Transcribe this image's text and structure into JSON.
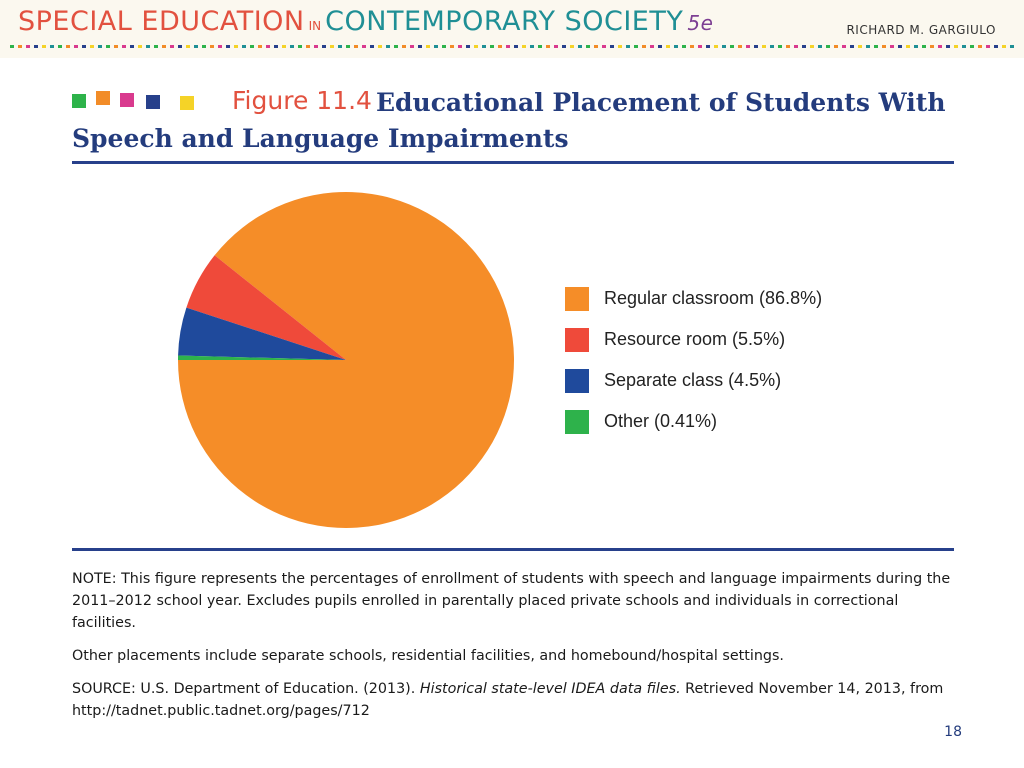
{
  "banner": {
    "title_part1": "SPECIAL EDUCATION",
    "title_in": "IN",
    "title_part2": "CONTEMPORARY SOCIETY",
    "edition": "5e",
    "author": "RICHARD M. GARGIULO"
  },
  "figure": {
    "label": "Figure 11.4",
    "title_line1": "Educational Placement of Students With",
    "title_line2": "Speech and Language Impairments"
  },
  "colors": {
    "banner_red": "#e2513f",
    "banner_teal": "#1f8f95",
    "title_navy": "#243c7d",
    "rule": "#27408b",
    "squares": [
      "#2db34a",
      "#f28c28",
      "#d93a8e",
      "#27408b",
      "#f5d327"
    ]
  },
  "chart_data": {
    "type": "pie",
    "title": "Educational Placement of Students With Speech and Language Impairments",
    "start_angle_deg": 180,
    "direction": "counterclockwise",
    "slices": [
      {
        "name": "Regular classroom",
        "value": 86.8,
        "color": "#f58d28",
        "legend": "Regular classroom (86.8%)"
      },
      {
        "name": "Resource room",
        "value": 5.5,
        "color": "#ef4a3a",
        "legend": "Resource room (5.5%)"
      },
      {
        "name": "Separate class",
        "value": 4.5,
        "color": "#1f4a9c",
        "legend": "Separate class (4.5%)"
      },
      {
        "name": "Other",
        "value": 0.41,
        "color": "#2eb24b",
        "legend": "Other (0.41%)"
      }
    ],
    "legend_position": "right"
  },
  "notes": {
    "note": "NOTE: This figure represents the percentages of enrollment of students with speech and language impairments during the 2011–2012 school year. Excludes pupils enrolled in parentally placed private schools and individuals in correctional facilities.",
    "other": "Other placements include separate schools, residential facilities, and homebound/hospital settings.",
    "source_prefix": "SOURCE: U.S. Department of Education. (2013).",
    "source_title": "Historical state-level IDEA data files.",
    "source_suffix": "Retrieved November 14, 2013, from http://tadnet.public.tadnet.org/pages/712"
  },
  "page": {
    "number": "18"
  }
}
